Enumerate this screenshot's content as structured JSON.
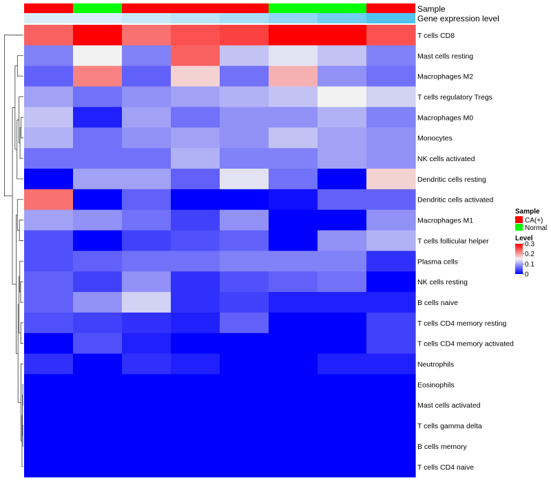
{
  "chart_data": {
    "type": "heatmap",
    "title": "",
    "annotation_tracks": [
      {
        "name": "Sample",
        "values": [
          "CA(+)",
          "Normal",
          "CA(+)",
          "CA(+)",
          "CA(+)",
          "Normal",
          "Normal",
          "CA(+)"
        ]
      },
      {
        "name": "Gene expression level",
        "values": [
          0.05,
          0.05,
          0.15,
          0.25,
          0.35,
          0.5,
          0.7,
          0.9
        ]
      }
    ],
    "rows": [
      "T cells CD8",
      "Mast cells resting",
      "Macrophages M2",
      "T cells regulatory  Tregs",
      "Macrophages M0",
      "Monocytes",
      "NK cells activated",
      "Dendritic cells resting",
      "Dendritic cells activated",
      "Macrophages M1",
      "T cells follicular helper",
      "Plasma cells",
      "NK cells resting",
      "B cells naive",
      "T cells CD4 memory resting",
      "T cells CD4 memory activated",
      "Neutrophils",
      "Eosinophils",
      "Mast cells activated",
      "T cells gamma delta",
      "B cells memory",
      "T cells CD4 naive"
    ],
    "values": [
      [
        0.24,
        0.3,
        0.23,
        0.25,
        0.26,
        0.3,
        0.3,
        0.25
      ],
      [
        0.08,
        0.15,
        0.08,
        0.24,
        0.12,
        0.14,
        0.12,
        0.08
      ],
      [
        0.06,
        0.22,
        0.06,
        0.17,
        0.07,
        0.19,
        0.09,
        0.07
      ],
      [
        0.1,
        0.07,
        0.09,
        0.1,
        0.11,
        0.12,
        0.15,
        0.13
      ],
      [
        0.12,
        0.02,
        0.1,
        0.07,
        0.09,
        0.09,
        0.11,
        0.08
      ],
      [
        0.11,
        0.07,
        0.09,
        0.1,
        0.09,
        0.12,
        0.1,
        0.09
      ],
      [
        0.07,
        0.07,
        0.07,
        0.11,
        0.08,
        0.08,
        0.1,
        0.09
      ],
      [
        0.0,
        0.1,
        0.1,
        0.06,
        0.14,
        0.07,
        0.0,
        0.17
      ],
      [
        0.23,
        0.0,
        0.06,
        0.0,
        0.0,
        0.01,
        0.06,
        0.06
      ],
      [
        0.1,
        0.09,
        0.07,
        0.04,
        0.09,
        0.0,
        0.0,
        0.09
      ],
      [
        0.05,
        0.0,
        0.04,
        0.05,
        0.06,
        0.0,
        0.09,
        0.11
      ],
      [
        0.05,
        0.06,
        0.07,
        0.07,
        0.08,
        0.08,
        0.08,
        0.03
      ],
      [
        0.06,
        0.04,
        0.09,
        0.03,
        0.05,
        0.06,
        0.07,
        0.0
      ],
      [
        0.06,
        0.09,
        0.13,
        0.03,
        0.04,
        0.02,
        0.02,
        0.02
      ],
      [
        0.05,
        0.04,
        0.03,
        0.02,
        0.06,
        0.0,
        0.0,
        0.04
      ],
      [
        0.0,
        0.05,
        0.02,
        0.0,
        0.0,
        0.0,
        0.0,
        0.04
      ],
      [
        0.03,
        0.0,
        0.03,
        0.02,
        0.0,
        0.0,
        0.02,
        0.02
      ],
      [
        0.0,
        0.0,
        0.0,
        0.0,
        0.0,
        0.0,
        0.0,
        0.0
      ],
      [
        0.0,
        0.0,
        0.0,
        0.0,
        0.0,
        0.0,
        0.0,
        0.0
      ],
      [
        0.0,
        0.0,
        0.0,
        0.0,
        0.0,
        0.0,
        0.0,
        0.0
      ],
      [
        0.0,
        0.0,
        0.0,
        0.0,
        0.0,
        0.0,
        0.0,
        0.0
      ],
      [
        0.0,
        0.0,
        0.0,
        0.0,
        0.0,
        0.0,
        0.0,
        0.0
      ]
    ],
    "value_range": [
      0,
      0.3
    ],
    "color_scale": {
      "low": "#0000ff",
      "mid": "#f2f2f2",
      "high": "#ff0000"
    },
    "row_dendrogram": true,
    "legend": {
      "placement": "right",
      "sample": {
        "title": "Sample",
        "items": [
          {
            "label": "CA(+)",
            "color": "#ff0000"
          },
          {
            "label": "Normal",
            "color": "#00ff00"
          }
        ]
      },
      "level": {
        "title": "Level",
        "ticks": [
          "0.3",
          "0.2",
          "0.1",
          "0"
        ]
      }
    }
  }
}
